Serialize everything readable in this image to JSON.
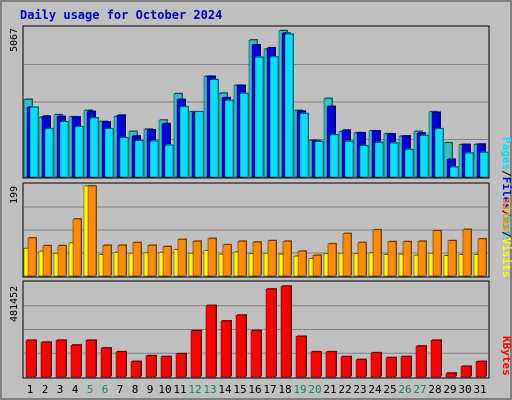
{
  "title": "Daily usage for October 2024",
  "colors": {
    "hits": "#30c0c0",
    "hits_dark": "#207060",
    "files": "#0000e0",
    "files_dark": "#00009a",
    "pages": "#00e0ff",
    "pages_dark": "#008aa0",
    "visits": "#ffff00",
    "visits_dark": "#a0a000",
    "sites": "#ff8c00",
    "sites_dark": "#a05000",
    "kbytes": "#ff0000",
    "kbytes_dark": "#900000",
    "weekday": "#000000",
    "weekend": "#208060"
  },
  "legend_right": {
    "top": [
      {
        "text": "Pages",
        "key": "pages"
      },
      {
        "text": "/",
        "key": "slash"
      },
      {
        "text": "Files",
        "key": "files"
      },
      {
        "text": "/",
        "key": "slash"
      },
      {
        "text": "Hits",
        "key": "hits"
      }
    ],
    "middle": [
      {
        "text": "Sites",
        "key": "sites"
      },
      {
        "text": "/",
        "key": "slash"
      },
      {
        "text": "Visits",
        "key": "visits"
      }
    ],
    "bottom": [
      {
        "text": "KBytes",
        "key": "kbytes"
      }
    ]
  },
  "chart_data": [
    {
      "type": "bar",
      "title": "Daily usage for October 2024",
      "ylabel_max": "5067",
      "ylim": [
        0,
        5067
      ],
      "categories": [
        "1",
        "2",
        "3",
        "4",
        "5",
        "6",
        "7",
        "8",
        "9",
        "10",
        "11",
        "12",
        "13",
        "14",
        "15",
        "16",
        "17",
        "18",
        "19",
        "20",
        "21",
        "22",
        "23",
        "24",
        "25",
        "26",
        "27",
        "28",
        "29",
        "30",
        "31"
      ],
      "weekend_days": [
        "5",
        "6",
        "12",
        "13",
        "19",
        "20",
        "26",
        "27"
      ],
      "series": [
        {
          "name": "Hits",
          "values": [
            2660,
            2050,
            2130,
            2060,
            2280,
            1900,
            2080,
            1560,
            1640,
            1950,
            2850,
            2230,
            3450,
            2870,
            3140,
            4690,
            4380,
            5010,
            2280,
            1260,
            2690,
            1550,
            1510,
            1580,
            1480,
            1400,
            1560,
            2230,
            1170,
            1110,
            1120
          ]
        },
        {
          "name": "Files",
          "values": [
            2390,
            2080,
            2070,
            2050,
            2240,
            1880,
            2110,
            1400,
            1610,
            1820,
            2650,
            2200,
            3440,
            2710,
            3130,
            4520,
            4420,
            4920,
            2250,
            1240,
            2410,
            1600,
            1510,
            1570,
            1470,
            1400,
            1500,
            2210,
            600,
            1110,
            1120
          ]
        },
        {
          "name": "Pages",
          "values": [
            2390,
            1650,
            1890,
            1720,
            2020,
            1650,
            1340,
            1240,
            1230,
            1090,
            2400,
            2230,
            3330,
            2620,
            2860,
            4100,
            4110,
            4890,
            2170,
            1210,
            1440,
            1220,
            1070,
            1180,
            1160,
            940,
            1420,
            1650,
            340,
            820,
            840
          ]
        }
      ]
    },
    {
      "type": "bar",
      "ylabel_max": "199",
      "ylim": [
        0,
        199
      ],
      "categories": [
        "1",
        "2",
        "3",
        "4",
        "5",
        "6",
        "7",
        "8",
        "9",
        "10",
        "11",
        "12",
        "13",
        "14",
        "15",
        "16",
        "17",
        "18",
        "19",
        "20",
        "21",
        "22",
        "23",
        "24",
        "25",
        "26",
        "27",
        "28",
        "29",
        "30",
        "31"
      ],
      "series": [
        {
          "name": "Visits",
          "values": [
            61,
            55,
            50,
            73,
            199,
            47,
            52,
            50,
            51,
            52,
            58,
            50,
            56,
            48,
            53,
            49,
            50,
            48,
            44,
            38,
            49,
            50,
            49,
            51,
            47,
            48,
            46,
            50,
            45,
            47,
            47
          ]
        },
        {
          "name": "Sites",
          "values": [
            84,
            67,
            67,
            126,
            199,
            68,
            68,
            74,
            68,
            65,
            81,
            77,
            83,
            69,
            77,
            75,
            78,
            77,
            55,
            46,
            71,
            94,
            74,
            102,
            76,
            76,
            77,
            100,
            78,
            103,
            82
          ]
        }
      ]
    },
    {
      "type": "bar",
      "ylabel_max": "481452",
      "ylim": [
        0,
        481452
      ],
      "categories": [
        "1",
        "2",
        "3",
        "4",
        "5",
        "6",
        "7",
        "8",
        "9",
        "10",
        "11",
        "12",
        "13",
        "14",
        "15",
        "16",
        "17",
        "18",
        "19",
        "20",
        "21",
        "22",
        "23",
        "24",
        "25",
        "26",
        "27",
        "28",
        "29",
        "30",
        "31"
      ],
      "series": [
        {
          "name": "KBytes",
          "values": [
            190000,
            180000,
            190000,
            165000,
            190000,
            150000,
            130000,
            80000,
            110000,
            105000,
            120000,
            240000,
            370000,
            290000,
            320000,
            240000,
            455000,
            470000,
            210000,
            130000,
            130000,
            105000,
            90000,
            125000,
            100000,
            105000,
            160000,
            190000,
            20000,
            55000,
            80000
          ]
        }
      ]
    }
  ]
}
